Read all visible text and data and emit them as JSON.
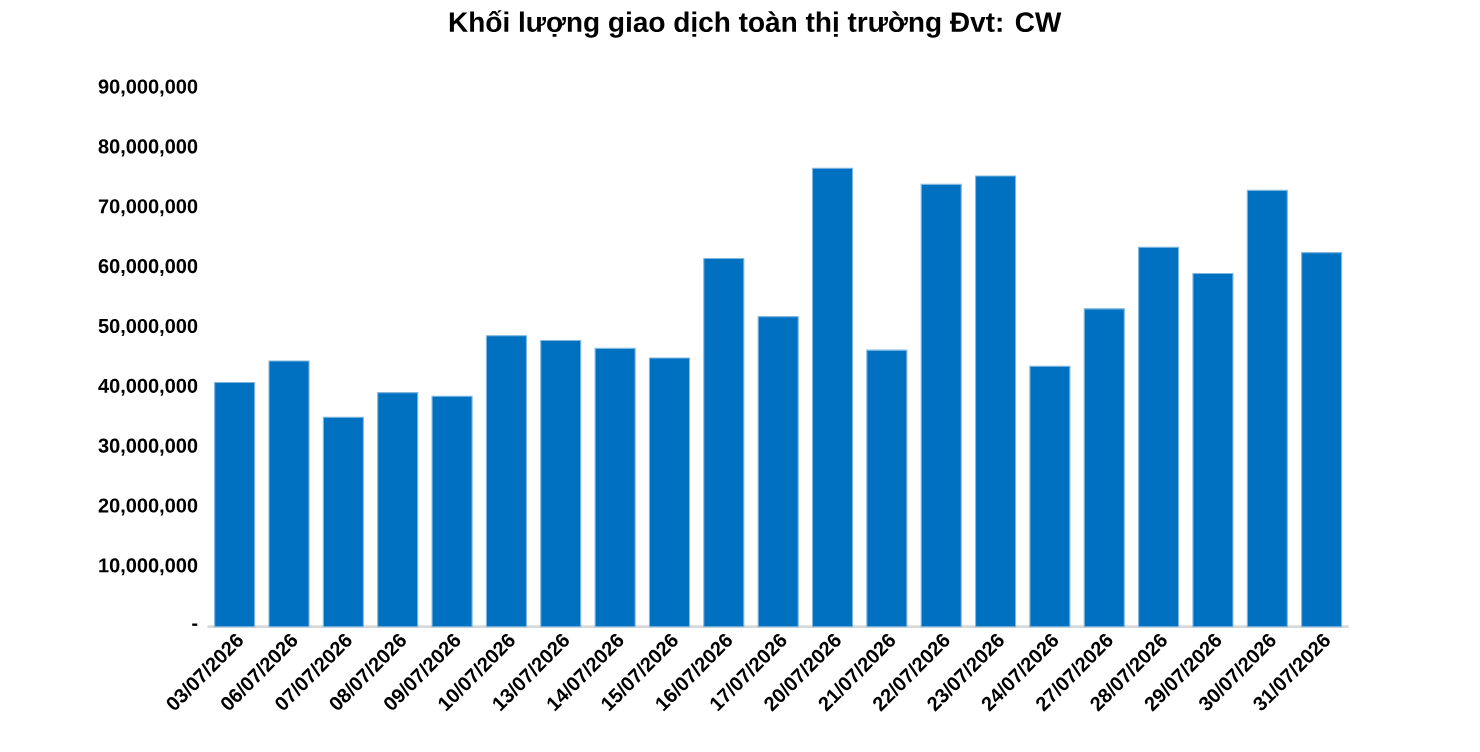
{
  "chart_data": {
    "type": "bar",
    "title": "Khối lượng giao dịch toàn thị trường Đvt: CW",
    "categories": [
      "03/07/2026",
      "06/07/2026",
      "07/07/2026",
      "08/07/2026",
      "09/07/2026",
      "10/07/2026",
      "13/07/2026",
      "14/07/2026",
      "15/07/2026",
      "16/07/2026",
      "17/07/2026",
      "20/07/2026",
      "21/07/2026",
      "22/07/2026",
      "23/07/2026",
      "24/07/2026",
      "27/07/2026",
      "28/07/2026",
      "29/07/2026",
      "30/07/2026",
      "31/07/2026"
    ],
    "values": [
      40800000,
      44400000,
      35000000,
      39100000,
      38500000,
      48600000,
      47800000,
      46500000,
      44900000,
      61500000,
      51800000,
      76600000,
      46200000,
      73900000,
      75300000,
      43500000,
      53100000,
      63400000,
      59000000,
      72900000,
      62500000
    ],
    "color": "#0070c0",
    "ylim": [
      0,
      90000000
    ],
    "yticks": [
      {
        "value": 0,
        "label": "-"
      },
      {
        "value": 10000000,
        "label": "10,000,000"
      },
      {
        "value": 20000000,
        "label": "20,000,000"
      },
      {
        "value": 30000000,
        "label": "30,000,000"
      },
      {
        "value": 40000000,
        "label": "40,000,000"
      },
      {
        "value": 50000000,
        "label": "50,000,000"
      },
      {
        "value": 60000000,
        "label": "60,000,000"
      },
      {
        "value": 70000000,
        "label": "70,000,000"
      },
      {
        "value": 80000000,
        "label": "80,000,000"
      },
      {
        "value": 90000000,
        "label": "90,000,000"
      }
    ],
    "grid": false
  }
}
